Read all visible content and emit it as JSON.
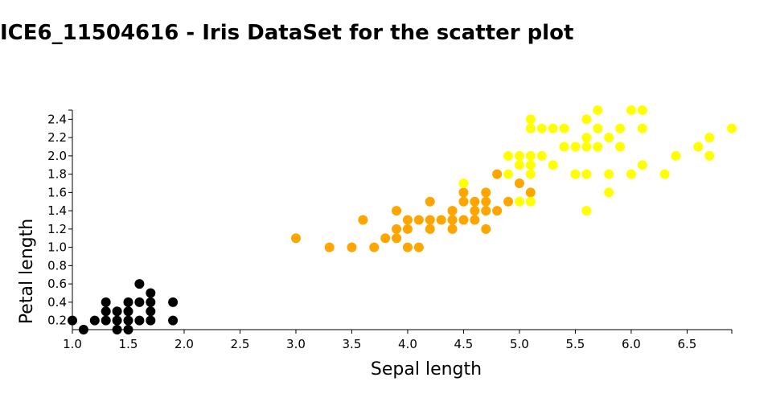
{
  "chart_data": {
    "type": "scatter",
    "title": "ICE6_11504616 - Iris DataSet for the scatter plot",
    "xlabel": "Sepal length",
    "ylabel": "Petal length",
    "xlim": [
      1.0,
      6.9
    ],
    "ylim": [
      0.1,
      2.5
    ],
    "xticks": [
      "1.0",
      "1.5",
      "2.0",
      "2.5",
      "3.0",
      "3.5",
      "4.0",
      "4.5",
      "5.0",
      "5.5",
      "6.0",
      "6.5"
    ],
    "yticks": [
      "0.2",
      "0.4",
      "0.6",
      "0.8",
      "1.0",
      "1.2",
      "1.4",
      "1.6",
      "1.8",
      "2.0",
      "2.2",
      "2.4"
    ],
    "grid": false,
    "series": [
      {
        "color": "#000000",
        "points": [
          [
            1.0,
            0.2
          ],
          [
            1.1,
            0.1
          ],
          [
            1.2,
            0.2
          ],
          [
            1.3,
            0.2
          ],
          [
            1.3,
            0.3
          ],
          [
            1.3,
            0.4
          ],
          [
            1.4,
            0.1
          ],
          [
            1.4,
            0.2
          ],
          [
            1.4,
            0.3
          ],
          [
            1.5,
            0.1
          ],
          [
            1.5,
            0.2
          ],
          [
            1.5,
            0.3
          ],
          [
            1.5,
            0.4
          ],
          [
            1.6,
            0.2
          ],
          [
            1.6,
            0.4
          ],
          [
            1.6,
            0.6
          ],
          [
            1.7,
            0.2
          ],
          [
            1.7,
            0.3
          ],
          [
            1.7,
            0.4
          ],
          [
            1.7,
            0.5
          ],
          [
            1.9,
            0.2
          ],
          [
            1.9,
            0.4
          ]
        ]
      },
      {
        "color": "#ffa500",
        "points": [
          [
            3.0,
            1.1
          ],
          [
            3.3,
            1.0
          ],
          [
            3.5,
            1.0
          ],
          [
            3.6,
            1.3
          ],
          [
            3.7,
            1.0
          ],
          [
            3.8,
            1.1
          ],
          [
            3.9,
            1.1
          ],
          [
            3.9,
            1.2
          ],
          [
            3.9,
            1.4
          ],
          [
            4.0,
            1.0
          ],
          [
            4.0,
            1.2
          ],
          [
            4.0,
            1.3
          ],
          [
            4.1,
            1.0
          ],
          [
            4.1,
            1.3
          ],
          [
            4.2,
            1.2
          ],
          [
            4.2,
            1.3
          ],
          [
            4.2,
            1.5
          ],
          [
            4.3,
            1.3
          ],
          [
            4.4,
            1.2
          ],
          [
            4.4,
            1.3
          ],
          [
            4.4,
            1.4
          ],
          [
            4.5,
            1.3
          ],
          [
            4.5,
            1.5
          ],
          [
            4.5,
            1.6
          ],
          [
            4.6,
            1.3
          ],
          [
            4.6,
            1.4
          ],
          [
            4.6,
            1.5
          ],
          [
            4.7,
            1.2
          ],
          [
            4.7,
            1.4
          ],
          [
            4.7,
            1.5
          ],
          [
            4.7,
            1.6
          ],
          [
            4.8,
            1.4
          ],
          [
            4.8,
            1.8
          ],
          [
            4.9,
            1.5
          ],
          [
            5.0,
            1.7
          ],
          [
            5.1,
            1.6
          ]
        ]
      },
      {
        "color": "#ffff00",
        "points": [
          [
            4.5,
            1.7
          ],
          [
            4.9,
            1.8
          ],
          [
            4.9,
            2.0
          ],
          [
            5.0,
            1.5
          ],
          [
            5.0,
            1.9
          ],
          [
            5.0,
            2.0
          ],
          [
            5.1,
            1.5
          ],
          [
            5.1,
            1.8
          ],
          [
            5.1,
            1.9
          ],
          [
            5.1,
            2.0
          ],
          [
            5.1,
            2.3
          ],
          [
            5.1,
            2.4
          ],
          [
            5.2,
            2.0
          ],
          [
            5.2,
            2.3
          ],
          [
            5.3,
            1.9
          ],
          [
            5.3,
            2.3
          ],
          [
            5.4,
            2.1
          ],
          [
            5.4,
            2.3
          ],
          [
            5.5,
            1.8
          ],
          [
            5.5,
            2.1
          ],
          [
            5.6,
            1.4
          ],
          [
            5.6,
            1.8
          ],
          [
            5.6,
            2.1
          ],
          [
            5.6,
            2.2
          ],
          [
            5.6,
            2.4
          ],
          [
            5.7,
            2.1
          ],
          [
            5.7,
            2.3
          ],
          [
            5.7,
            2.5
          ],
          [
            5.8,
            1.6
          ],
          [
            5.8,
            1.8
          ],
          [
            5.8,
            2.2
          ],
          [
            5.9,
            2.1
          ],
          [
            5.9,
            2.3
          ],
          [
            6.0,
            1.8
          ],
          [
            6.0,
            2.5
          ],
          [
            6.1,
            1.9
          ],
          [
            6.1,
            2.3
          ],
          [
            6.1,
            2.5
          ],
          [
            6.3,
            1.8
          ],
          [
            6.4,
            2.0
          ],
          [
            6.6,
            2.1
          ],
          [
            6.7,
            2.0
          ],
          [
            6.7,
            2.2
          ],
          [
            6.9,
            2.3
          ]
        ]
      }
    ]
  }
}
